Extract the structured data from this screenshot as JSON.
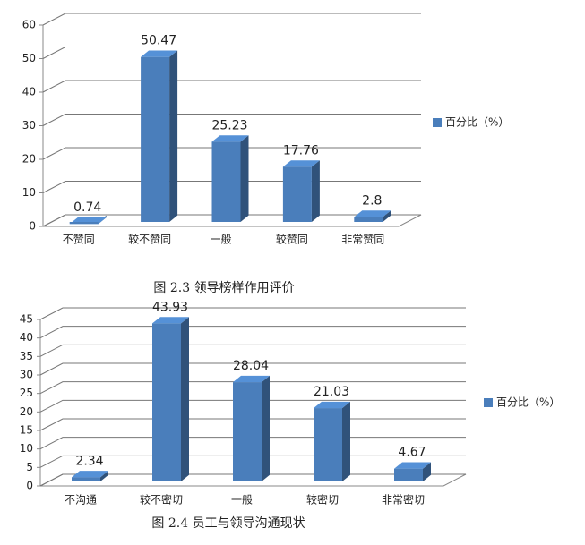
{
  "chart_data": [
    {
      "type": "bar",
      "caption": "图 2.3 领导榜样作用评价",
      "categories": [
        "不赞同",
        "较不赞同",
        "一般",
        "较赞同",
        "非常赞同"
      ],
      "series": [
        {
          "name": "百分比（%）",
          "color": "#4a7ebb",
          "values": [
            0.74,
            50.47,
            25.23,
            17.76,
            2.8
          ]
        }
      ],
      "ylim": [
        0,
        60
      ],
      "yticks": [
        0,
        10,
        20,
        30,
        40,
        50,
        60
      ],
      "grid": true,
      "legend": "right"
    },
    {
      "type": "bar",
      "caption": "图 2.4 员工与领导沟通现状",
      "categories": [
        "不沟通",
        "较不密切",
        "一般",
        "较密切",
        "非常密切"
      ],
      "series": [
        {
          "name": "百分比（%）",
          "color": "#4a7ebb",
          "values": [
            2.34,
            43.93,
            28.04,
            21.03,
            4.67
          ]
        }
      ],
      "ylim": [
        0,
        45
      ],
      "yticks": [
        0,
        5,
        10,
        15,
        20,
        25,
        30,
        35,
        40,
        45
      ],
      "grid": true,
      "legend": "right"
    }
  ]
}
